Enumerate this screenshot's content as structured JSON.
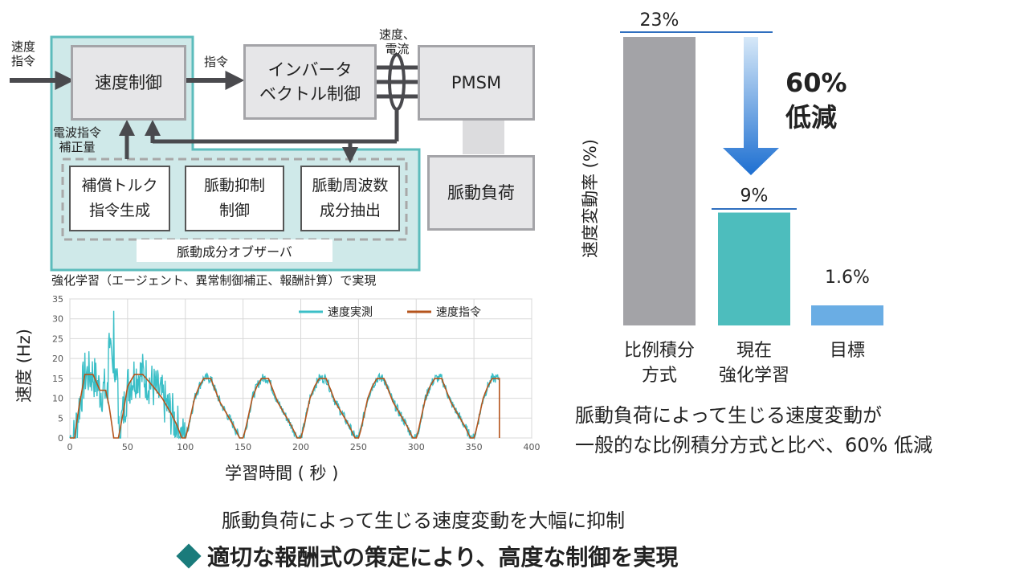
{
  "block_diagram": {
    "input_label_line1": "速度",
    "input_label_line2": "指令",
    "speed_control": "速度制御",
    "command_label": "指令",
    "inverter_line1": "インバータ",
    "inverter_line2": "ベクトル制御",
    "speed_current_line1": "速度、",
    "speed_current_line2": "電流",
    "motor": "PMSM",
    "pulsation_load": "脈動負荷",
    "correction_line1": "電波指令",
    "correction_line2": "補正量",
    "comp_torque_line1": "補償トルク",
    "comp_torque_line2": "指令生成",
    "pulsation_suppress_line1": "脈動抑制",
    "pulsation_suppress_line2": "制御",
    "freq_extract_line1": "脈動周波数",
    "freq_extract_line2": "成分抽出",
    "observer": "脈動成分オブザーバ",
    "rl_caption": "強化学習（エージェント、異常制御補正、報酬計算）で実現"
  },
  "chart_data": [
    {
      "type": "line",
      "xlabel": "学習時間 ( 秒 )",
      "ylabel": "速度 (Hz)",
      "xlim": [
        0,
        400
      ],
      "ylim": [
        0,
        35
      ],
      "x_ticks": [
        "0",
        "50",
        "100",
        "150",
        "200",
        "250",
        "300",
        "350",
        "400"
      ],
      "y_ticks": [
        "0",
        "5",
        "10",
        "15",
        "20",
        "25",
        "30",
        "35"
      ],
      "grid": true,
      "legend_position": "top-right",
      "colors": {
        "measured": "#3bbfc7",
        "command": "#b5541c"
      },
      "series": [
        {
          "name": "速度実測"
        },
        {
          "name": "速度指令"
        }
      ],
      "pattern": {
        "cycle_starts": [
          100,
          150,
          200,
          250,
          300,
          350
        ],
        "cycle_peak": 15,
        "initial_peak_measured": 32,
        "end_x": 372
      }
    },
    {
      "type": "bar",
      "ylabel": "速度変動率 (%)",
      "categories": [
        "比例積分方式",
        "現在強化学習",
        "目標"
      ],
      "category_lines": [
        [
          "比例積分",
          "方式"
        ],
        [
          "現在",
          "強化学習"
        ],
        [
          "目標"
        ]
      ],
      "values": [
        23,
        9,
        1.6
      ],
      "value_labels": [
        "23%",
        "9%",
        "1.6%"
      ],
      "colors": [
        "#a3a3a7",
        "#4dbdbd",
        "#6aade4"
      ],
      "ylim": [
        0,
        23
      ],
      "reduction_label_line1": "60%",
      "reduction_label_line2": "低減"
    }
  ],
  "right_caption_line1": "脈動負荷によって生じる速度変動が",
  "right_caption_line2": "一般的な比例積分方式と比べ、60% 低減",
  "bottom_line1": "脈動負荷によって生じる速度変動を大幅に抑制",
  "bottom_line2": "適切な報酬式の策定により、高度な制御を実現",
  "bottom_bullet_color": "#1a7b7b"
}
